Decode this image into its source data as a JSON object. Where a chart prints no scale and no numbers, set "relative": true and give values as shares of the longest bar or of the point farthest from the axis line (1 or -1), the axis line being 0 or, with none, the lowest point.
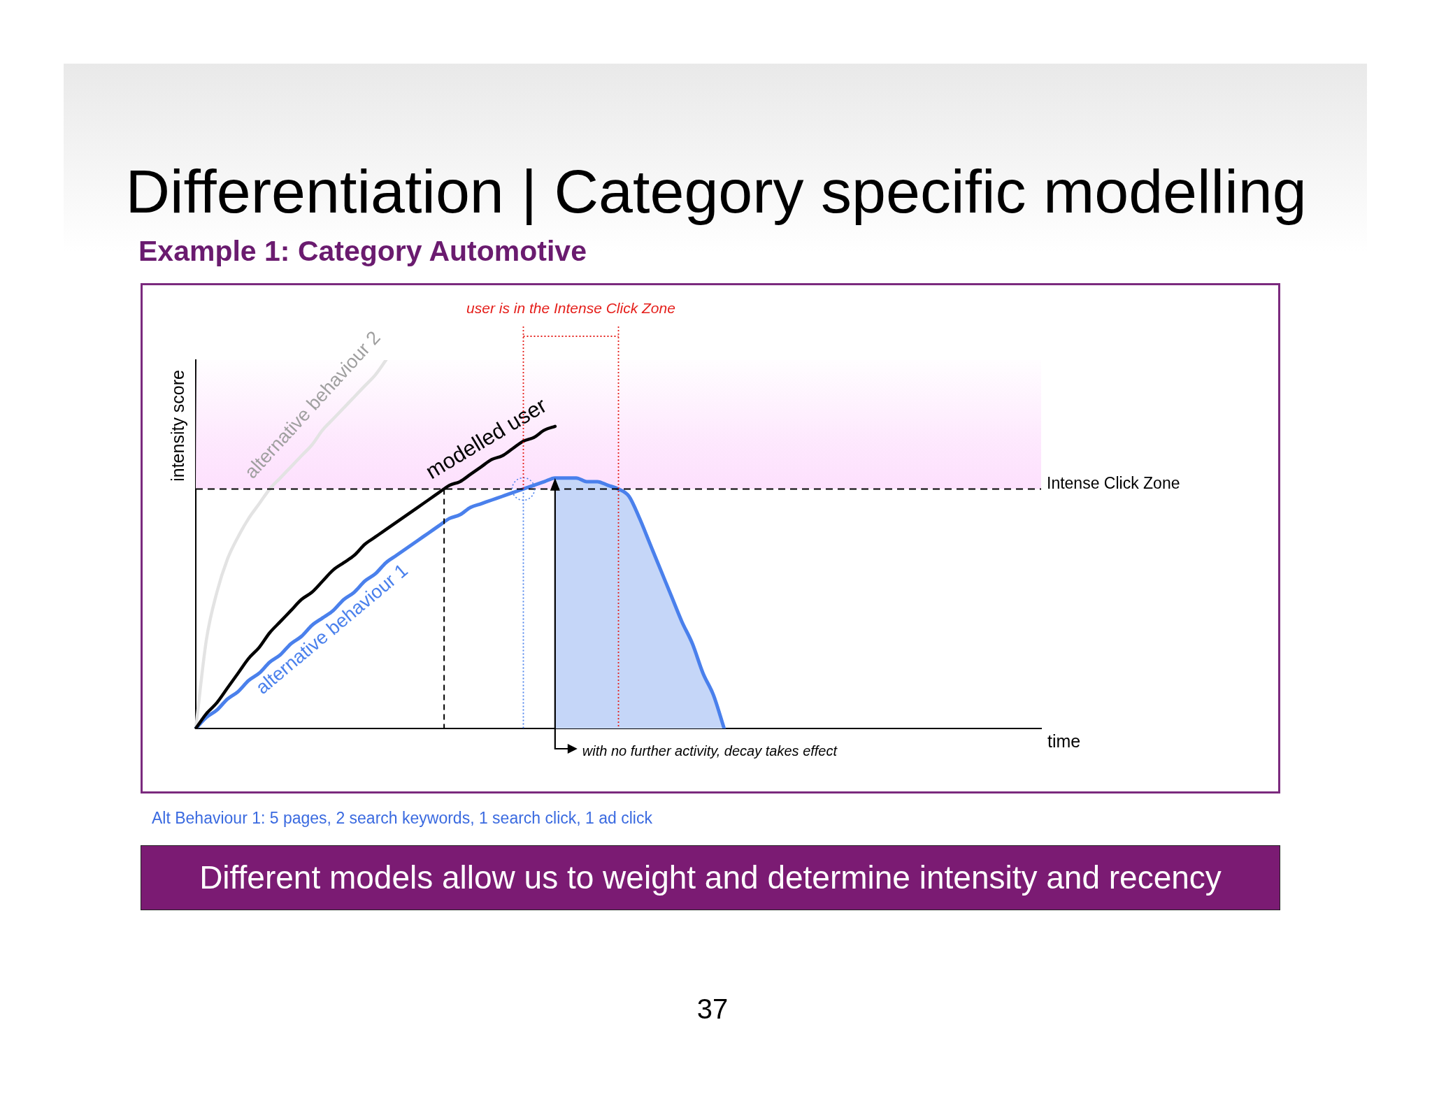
{
  "chart_data": {
    "type": "line",
    "title": "Differentiation | Category specific modelling",
    "subtitle": "Example 1: Category Automotive",
    "xlabel": "time",
    "ylabel": "intensity score",
    "relative": true,
    "categories": [
      null,
      null,
      null,
      null,
      null,
      null,
      null,
      null,
      null,
      null,
      null,
      null,
      null,
      null,
      null,
      null,
      null,
      null,
      null,
      null,
      null,
      null,
      null,
      null,
      null,
      null,
      null,
      null,
      null,
      null,
      null,
      null,
      null,
      null,
      null,
      null,
      null,
      null,
      null,
      null,
      null,
      null,
      null,
      null,
      null,
      null,
      null,
      null,
      null,
      null,
      null,
      null,
      null,
      null,
      null,
      null,
      null,
      null,
      null,
      null,
      null,
      null,
      null,
      null,
      null,
      null,
      null,
      null,
      null,
      null,
      null,
      null,
      null,
      null,
      null,
      null,
      null,
      null,
      null,
      null,
      null
    ],
    "series": [
      {
        "name": "modelled user",
        "color": "#000000",
        "values": [
          0,
          0.04,
          0.07,
          0.11,
          0.15,
          0.19,
          0.22,
          0.26,
          0.29,
          0.32,
          0.35,
          0.37,
          0.4,
          0.43,
          0.45,
          0.47,
          0.5,
          0.52,
          0.54,
          0.56,
          0.58,
          0.6,
          0.62,
          0.64,
          0.66,
          0.67,
          0.69,
          0.71,
          0.73,
          0.74,
          0.76,
          0.78,
          0.79,
          0.81,
          0.82,
          null,
          null,
          null,
          null,
          null,
          null,
          null,
          null,
          null,
          null,
          null,
          null,
          null,
          null,
          null,
          null,
          null,
          null,
          null,
          null,
          null,
          null,
          null,
          null,
          null,
          null,
          null,
          null,
          null,
          null,
          null,
          null,
          null,
          null,
          null,
          null,
          null,
          null,
          null,
          null,
          null,
          null,
          null,
          null,
          null,
          null
        ]
      },
      {
        "name": "alternative behaviour 1",
        "color": "#4a80ec",
        "values": [
          0,
          0.03,
          0.05,
          0.08,
          0.1,
          0.13,
          0.15,
          0.18,
          0.2,
          0.23,
          0.25,
          0.28,
          0.3,
          0.32,
          0.35,
          0.37,
          0.4,
          0.42,
          0.45,
          0.47,
          0.49,
          0.51,
          0.53,
          0.55,
          0.57,
          0.58,
          0.6,
          0.61,
          0.62,
          0.63,
          0.64,
          0.65,
          0.66,
          0.67,
          0.68,
          0.68,
          0.68,
          0.67,
          0.67,
          0.66,
          0.65,
          0.63,
          0.57,
          0.5,
          0.43,
          0.36,
          0.29,
          0.23,
          0.15,
          0.09,
          0,
          null,
          null,
          null,
          null,
          null,
          null,
          null,
          null,
          null,
          null,
          null,
          null,
          null,
          null,
          null,
          null,
          null,
          null,
          null,
          null,
          null,
          null,
          null,
          null,
          null,
          null,
          null,
          null,
          null,
          null
        ]
      },
      {
        "name": "alternative behaviour 2",
        "color": "#e3e3e3",
        "values": [
          0,
          0.24,
          0.37,
          0.46,
          0.52,
          0.57,
          0.61,
          0.65,
          0.68,
          0.71,
          0.74,
          0.77,
          0.81,
          0.84,
          0.87,
          0.9,
          0.93,
          0.96,
          1,
          null,
          null,
          null,
          null,
          null,
          null,
          null,
          null,
          null,
          null,
          null,
          null,
          null,
          null,
          null,
          null,
          null,
          null,
          null,
          null,
          null,
          null,
          null,
          null,
          null,
          null,
          null,
          null,
          null,
          null,
          null,
          null,
          null,
          null,
          null,
          null,
          null,
          null,
          null,
          null,
          null,
          null,
          null,
          null,
          null,
          null,
          null,
          null,
          null,
          null,
          null,
          null,
          null,
          null,
          null,
          null,
          null,
          null,
          null,
          null,
          null,
          null
        ]
      },
      {
        "type": "area",
        "color": "#c5d6f8",
        "values": [
          null,
          null,
          null,
          null,
          null,
          null,
          null,
          null,
          null,
          null,
          null,
          null,
          null,
          null,
          null,
          null,
          null,
          null,
          null,
          null,
          null,
          null,
          null,
          null,
          null,
          null,
          null,
          null,
          null,
          null,
          null,
          null,
          null,
          null,
          0.68,
          0.68,
          0.68,
          0.67,
          0.67,
          0.66,
          0.65,
          0.63,
          0.57,
          0.5,
          0.43,
          0.36,
          0.29,
          0.23,
          0.15,
          0.09,
          0,
          null,
          null,
          null,
          null,
          null,
          null,
          null,
          null,
          null,
          null,
          null,
          null,
          null,
          null,
          null,
          null,
          null,
          null,
          null,
          null,
          null,
          null,
          null,
          null,
          null,
          null,
          null,
          null,
          null,
          null
        ]
      }
    ],
    "ref_lines": [
      {
        "axis": "y",
        "value": 0.65,
        "label": "Intense Click Zone",
        "color": "#000000",
        "line_style": "dashed"
      }
    ],
    "bands": [
      {
        "axis": "y",
        "from": 0.65,
        "to": 1,
        "color": "#fde0fd"
      }
    ],
    "annotations": [
      "user is in the Intense Click Zone",
      "with no further activity, decay takes effect",
      "Alt Behaviour 1: 5 pages, 2 search keywords, 1 search click, 1 ad click",
      "Different models allow us to weight and determine intensity and recency",
      "37"
    ]
  }
}
